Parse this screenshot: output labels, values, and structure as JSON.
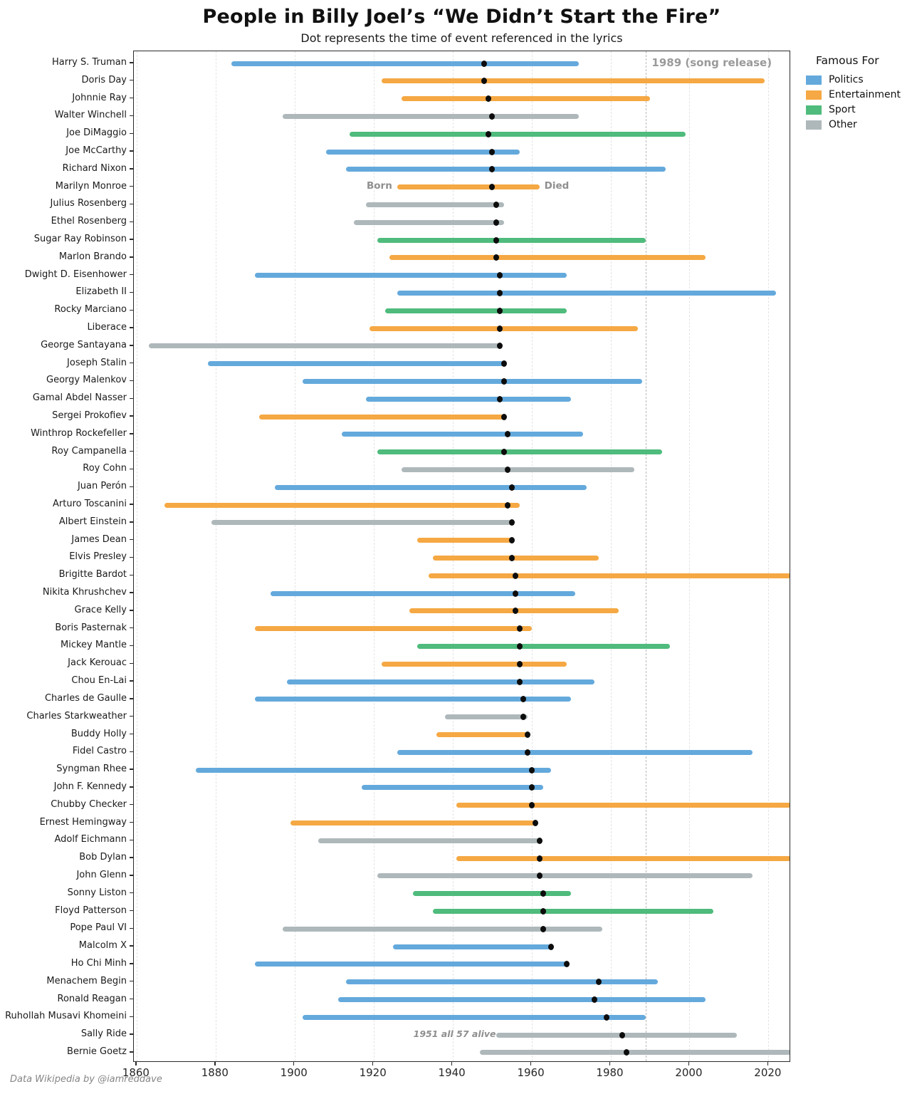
{
  "title": "People in Billy Joel’s “We Didn’t Start the Fire”",
  "subtitle": "Dot represents the time of event referenced in the lyrics",
  "footer": "Data Wikipedia by @iamreddave",
  "legend": {
    "title": "Famous For",
    "items": [
      {
        "label": "Politics",
        "color": "#64A9DC"
      },
      {
        "label": "Entertainment",
        "color": "#F5A843"
      },
      {
        "label": "Sport",
        "color": "#4FBB7C"
      },
      {
        "label": "Other",
        "color": "#AEB8BA"
      }
    ]
  },
  "annotations": {
    "song_release": {
      "text": "1989 (song release)",
      "year": 1989
    },
    "born_label": {
      "text": "Born",
      "person": "Marilyn Monroe"
    },
    "died_label": {
      "text": "Died",
      "person": "Marilyn Monroe"
    },
    "alive_note": {
      "text": "1951 all 57 alive",
      "person": "Sally Ride",
      "year": 1951
    }
  },
  "chart_data": {
    "type": "timeline_bar",
    "title": "People in Billy Joel’s “We Didn’t Start the Fire”",
    "xlabel": "",
    "ylabel": "",
    "x_axis": {
      "ticks": [
        1860,
        1880,
        1900,
        1920,
        1940,
        1960,
        1980,
        2000,
        2020
      ],
      "xlim": [
        1859.3,
        2025.7
      ]
    },
    "grid": "vertical-dashed",
    "legend_position": "upper-right-outside",
    "song_release_year": 1989,
    "category_colors": {
      "Politics": "#64A9DC",
      "Entertainment": "#F5A843",
      "Sport": "#4FBB7C",
      "Other": "#AEB8BA"
    },
    "people": [
      {
        "name": "Harry S. Truman",
        "born": 1884,
        "died": 1972,
        "event": 1948,
        "category": "Politics"
      },
      {
        "name": "Doris Day",
        "born": 1922,
        "died": 2019,
        "event": 1948,
        "category": "Entertainment"
      },
      {
        "name": "Johnnie Ray",
        "born": 1927,
        "died": 1990,
        "event": 1949,
        "category": "Entertainment"
      },
      {
        "name": "Walter Winchell",
        "born": 1897,
        "died": 1972,
        "event": 1950,
        "category": "Other"
      },
      {
        "name": "Joe DiMaggio",
        "born": 1914,
        "died": 1999,
        "event": 1949,
        "category": "Sport"
      },
      {
        "name": "Joe McCarthy",
        "born": 1908,
        "died": 1957,
        "event": 1950,
        "category": "Politics"
      },
      {
        "name": "Richard Nixon",
        "born": 1913,
        "died": 1994,
        "event": 1950,
        "category": "Politics"
      },
      {
        "name": "Marilyn Monroe",
        "born": 1926,
        "died": 1962,
        "event": 1950,
        "category": "Entertainment"
      },
      {
        "name": "Julius Rosenberg",
        "born": 1918,
        "died": 1953,
        "event": 1951,
        "category": "Other"
      },
      {
        "name": "Ethel Rosenberg",
        "born": 1915,
        "died": 1953,
        "event": 1951,
        "category": "Other"
      },
      {
        "name": "Sugar Ray Robinson",
        "born": 1921,
        "died": 1989,
        "event": 1951,
        "category": "Sport"
      },
      {
        "name": "Marlon Brando",
        "born": 1924,
        "died": 2004,
        "event": 1951,
        "category": "Entertainment"
      },
      {
        "name": "Dwight D. Eisenhower",
        "born": 1890,
        "died": 1969,
        "event": 1952,
        "category": "Politics"
      },
      {
        "name": "Elizabeth II",
        "born": 1926,
        "died": 2022,
        "event": 1952,
        "category": "Politics"
      },
      {
        "name": "Rocky Marciano",
        "born": 1923,
        "died": 1969,
        "event": 1952,
        "category": "Sport"
      },
      {
        "name": "Liberace",
        "born": 1919,
        "died": 1987,
        "event": 1952,
        "category": "Entertainment"
      },
      {
        "name": "George Santayana",
        "born": 1863,
        "died": 1952,
        "event": 1952,
        "category": "Other"
      },
      {
        "name": "Joseph Stalin",
        "born": 1878,
        "died": 1953,
        "event": 1953,
        "category": "Politics"
      },
      {
        "name": "Georgy Malenkov",
        "born": 1902,
        "died": 1988,
        "event": 1953,
        "category": "Politics"
      },
      {
        "name": "Gamal Abdel Nasser",
        "born": 1918,
        "died": 1970,
        "event": 1952,
        "category": "Politics"
      },
      {
        "name": "Sergei Prokofiev",
        "born": 1891,
        "died": 1953,
        "event": 1953,
        "category": "Entertainment"
      },
      {
        "name": "Winthrop Rockefeller",
        "born": 1912,
        "died": 1973,
        "event": 1954,
        "category": "Politics"
      },
      {
        "name": "Roy Campanella",
        "born": 1921,
        "died": 1993,
        "event": 1953,
        "category": "Sport"
      },
      {
        "name": "Roy Cohn",
        "born": 1927,
        "died": 1986,
        "event": 1954,
        "category": "Other"
      },
      {
        "name": "Juan Perón",
        "born": 1895,
        "died": 1974,
        "event": 1955,
        "category": "Politics"
      },
      {
        "name": "Arturo Toscanini",
        "born": 1867,
        "died": 1957,
        "event": 1954,
        "category": "Entertainment"
      },
      {
        "name": "Albert Einstein",
        "born": 1879,
        "died": 1955,
        "event": 1955,
        "category": "Other"
      },
      {
        "name": "James Dean",
        "born": 1931,
        "died": 1955,
        "event": 1955,
        "category": "Entertainment"
      },
      {
        "name": "Elvis Presley",
        "born": 1935,
        "died": 1977,
        "event": 1955,
        "category": "Entertainment"
      },
      {
        "name": "Brigitte Bardot",
        "born": 1934,
        "died": null,
        "event": 1956,
        "category": "Entertainment"
      },
      {
        "name": "Nikita Khrushchev",
        "born": 1894,
        "died": 1971,
        "event": 1956,
        "category": "Politics"
      },
      {
        "name": "Grace Kelly",
        "born": 1929,
        "died": 1982,
        "event": 1956,
        "category": "Entertainment"
      },
      {
        "name": "Boris Pasternak",
        "born": 1890,
        "died": 1960,
        "event": 1957,
        "category": "Entertainment"
      },
      {
        "name": "Mickey Mantle",
        "born": 1931,
        "died": 1995,
        "event": 1957,
        "category": "Sport"
      },
      {
        "name": "Jack Kerouac",
        "born": 1922,
        "died": 1969,
        "event": 1957,
        "category": "Entertainment"
      },
      {
        "name": "Chou En-Lai",
        "born": 1898,
        "died": 1976,
        "event": 1957,
        "category": "Politics"
      },
      {
        "name": "Charles de Gaulle",
        "born": 1890,
        "died": 1970,
        "event": 1958,
        "category": "Politics"
      },
      {
        "name": "Charles Starkweather",
        "born": 1938,
        "died": 1959,
        "event": 1958,
        "category": "Other"
      },
      {
        "name": "Buddy Holly",
        "born": 1936,
        "died": 1959,
        "event": 1959,
        "category": "Entertainment"
      },
      {
        "name": "Fidel Castro",
        "born": 1926,
        "died": 2016,
        "event": 1959,
        "category": "Politics"
      },
      {
        "name": "Syngman Rhee",
        "born": 1875,
        "died": 1965,
        "event": 1960,
        "category": "Politics"
      },
      {
        "name": "John F. Kennedy",
        "born": 1917,
        "died": 1963,
        "event": 1960,
        "category": "Politics"
      },
      {
        "name": "Chubby Checker",
        "born": 1941,
        "died": null,
        "event": 1960,
        "category": "Entertainment"
      },
      {
        "name": "Ernest Hemingway",
        "born": 1899,
        "died": 1961,
        "event": 1961,
        "category": "Entertainment"
      },
      {
        "name": "Adolf Eichmann",
        "born": 1906,
        "died": 1962,
        "event": 1962,
        "category": "Other"
      },
      {
        "name": "Bob Dylan",
        "born": 1941,
        "died": null,
        "event": 1962,
        "category": "Entertainment"
      },
      {
        "name": "John Glenn",
        "born": 1921,
        "died": 2016,
        "event": 1962,
        "category": "Other"
      },
      {
        "name": "Sonny Liston",
        "born": 1930,
        "died": 1970,
        "event": 1963,
        "category": "Sport"
      },
      {
        "name": "Floyd Patterson",
        "born": 1935,
        "died": 2006,
        "event": 1963,
        "category": "Sport"
      },
      {
        "name": "Pope Paul VI",
        "born": 1897,
        "died": 1978,
        "event": 1963,
        "category": "Other"
      },
      {
        "name": "Malcolm X",
        "born": 1925,
        "died": 1965,
        "event": 1965,
        "category": "Politics"
      },
      {
        "name": "Ho Chi Minh",
        "born": 1890,
        "died": 1969,
        "event": 1969,
        "category": "Politics"
      },
      {
        "name": "Menachem Begin",
        "born": 1913,
        "died": 1992,
        "event": 1977,
        "category": "Politics"
      },
      {
        "name": "Ronald Reagan",
        "born": 1911,
        "died": 2004,
        "event": 1976,
        "category": "Politics"
      },
      {
        "name": "Ruhollah Musavi Khomeini",
        "born": 1902,
        "died": 1989,
        "event": 1979,
        "category": "Politics"
      },
      {
        "name": "Sally Ride",
        "born": 1951,
        "died": 2012,
        "event": 1983,
        "category": "Other"
      },
      {
        "name": "Bernie Goetz",
        "born": 1947,
        "died": null,
        "event": 1984,
        "category": "Other"
      }
    ]
  }
}
